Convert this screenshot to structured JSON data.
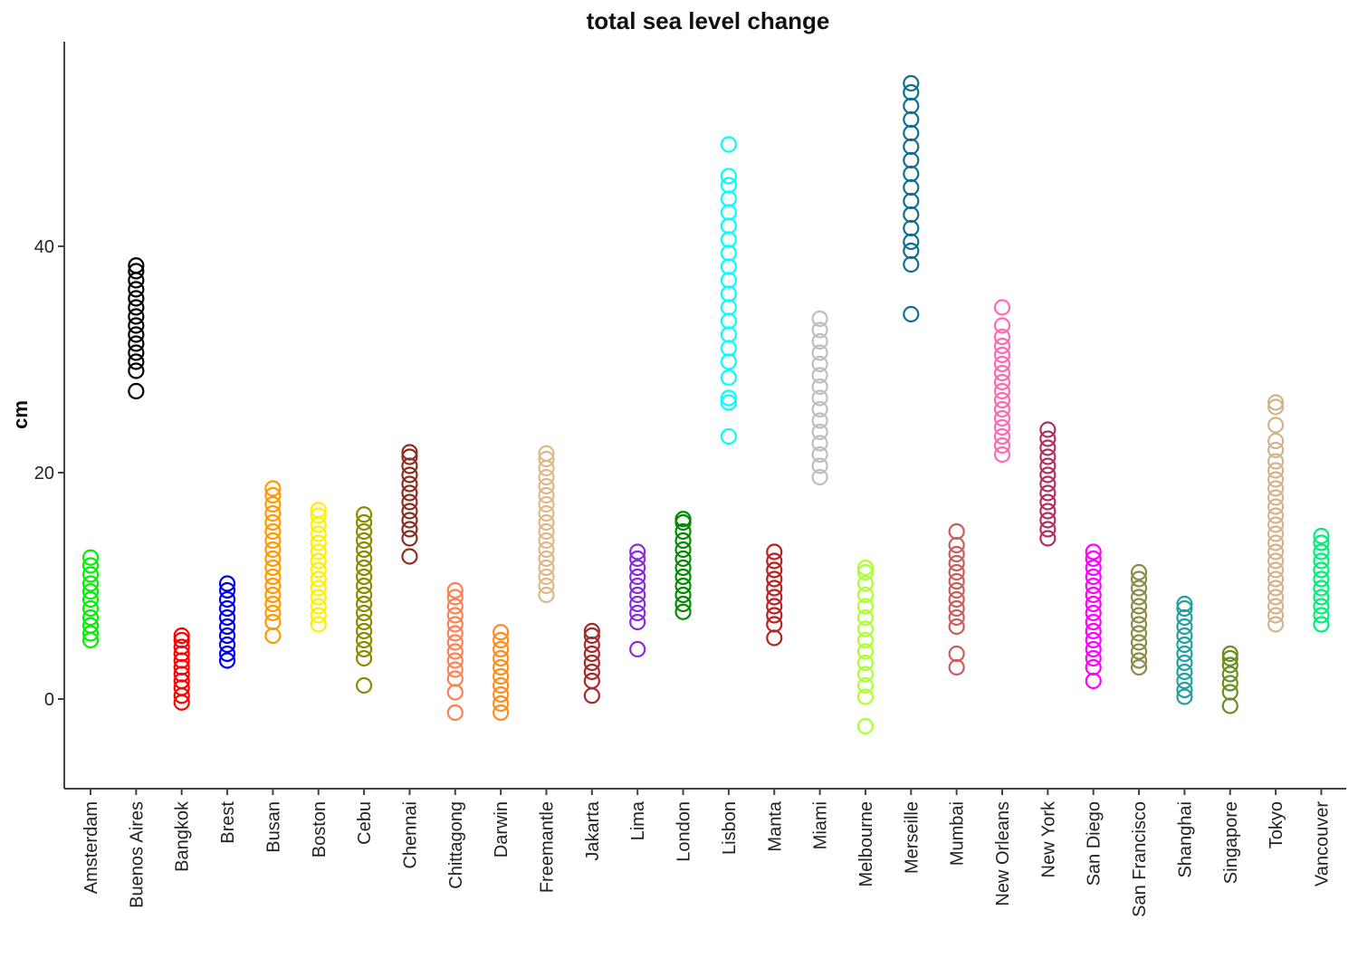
{
  "chart_data": {
    "type": "scatter",
    "title": "total sea level change",
    "xlabel": "",
    "ylabel": "cm",
    "ylim": [
      -8,
      58
    ],
    "yticks": [
      0,
      20,
      40
    ],
    "grid": false,
    "legend": "none",
    "marker": "open-circle",
    "categories": [
      "Amsterdam",
      "Buenos Aires",
      "Bangkok",
      "Brest",
      "Busan",
      "Boston",
      "Cebu",
      "Chennai",
      "Chittagong",
      "Darwin",
      "Freemantle",
      "Jakarta",
      "Lima",
      "London",
      "Lisbon",
      "Manta",
      "Miami",
      "Melbourne",
      "Merseille",
      "Mumbai",
      "New Orleans",
      "New York",
      "San Diego",
      "San Francisco",
      "Shanghai",
      "Singapore",
      "Tokyo",
      "Vancouver"
    ],
    "series": [
      {
        "category": "Amsterdam",
        "color": "#00f000",
        "values": [
          5.2,
          5.8,
          6.5,
          7.2,
          8.0,
          8.8,
          9.5,
          10.2,
          11.0,
          11.8,
          12.5
        ]
      },
      {
        "category": "Buenos Aires",
        "color": "#000000",
        "values": [
          27.2,
          29.0,
          29.8,
          30.6,
          31.4,
          32.2,
          33.0,
          33.8,
          34.6,
          35.4,
          36.2,
          37.0,
          37.8,
          38.3
        ]
      },
      {
        "category": "Bangkok",
        "color": "#ff0000",
        "values": [
          -0.3,
          0.3,
          1.0,
          1.6,
          2.2,
          2.8,
          3.4,
          4.0,
          4.6,
          5.2,
          5.6
        ]
      },
      {
        "category": "Brest",
        "color": "#0000ee",
        "values": [
          3.4,
          4.0,
          4.8,
          5.6,
          6.4,
          7.2,
          8.0,
          8.8,
          9.6,
          10.2
        ]
      },
      {
        "category": "Busan",
        "color": "#ff9900",
        "values": [
          5.6,
          6.8,
          7.6,
          8.4,
          9.2,
          10.0,
          10.8,
          11.6,
          12.4,
          13.2,
          14.0,
          14.8,
          15.6,
          16.4,
          17.2,
          18.0,
          18.6
        ]
      },
      {
        "category": "Boston",
        "color": "#ffee00",
        "values": [
          6.6,
          7.4,
          8.2,
          9.0,
          9.8,
          10.6,
          11.4,
          12.2,
          13.0,
          13.8,
          14.6,
          15.4,
          16.2,
          16.7
        ]
      },
      {
        "category": "Cebu",
        "color": "#8b8b00",
        "values": [
          1.2,
          3.6,
          4.4,
          5.2,
          6.0,
          6.8,
          7.6,
          8.4,
          9.2,
          10.0,
          10.8,
          11.6,
          12.4,
          13.2,
          14.0,
          14.8,
          15.6,
          16.3
        ]
      },
      {
        "category": "Chennai",
        "color": "#8b2e1f",
        "values": [
          12.6,
          14.2,
          15.0,
          15.8,
          16.6,
          17.4,
          18.2,
          19.0,
          19.8,
          20.6,
          21.4,
          21.8
        ]
      },
      {
        "category": "Chittagong",
        "color": "#ff7f50",
        "values": [
          -1.2,
          0.6,
          1.8,
          2.6,
          3.4,
          4.2,
          5.0,
          5.8,
          6.6,
          7.4,
          8.2,
          9.0,
          9.6
        ]
      },
      {
        "category": "Darwin",
        "color": "#ff8c1a",
        "values": [
          -1.2,
          -0.4,
          0.4,
          1.2,
          2.0,
          2.8,
          3.6,
          4.4,
          5.2,
          5.9
        ]
      },
      {
        "category": "Freemantle",
        "color": "#deb887",
        "values": [
          9.2,
          10.0,
          10.8,
          11.6,
          12.4,
          13.2,
          14.0,
          14.8,
          15.6,
          16.4,
          17.2,
          18.0,
          18.8,
          19.6,
          20.4,
          21.2,
          21.7
        ]
      },
      {
        "category": "Jakarta",
        "color": "#a52a2a",
        "values": [
          0.3,
          1.6,
          2.4,
          3.2,
          4.0,
          4.8,
          5.6,
          6.0
        ]
      },
      {
        "category": "Lima",
        "color": "#8a2be2",
        "values": [
          4.4,
          6.8,
          7.6,
          8.4,
          9.2,
          10.0,
          10.8,
          11.6,
          12.4,
          13.0
        ]
      },
      {
        "category": "London",
        "color": "#008b00",
        "values": [
          7.7,
          8.4,
          9.2,
          10.0,
          10.8,
          11.6,
          12.4,
          13.2,
          14.0,
          14.8,
          15.6,
          15.9
        ]
      },
      {
        "category": "Lisbon",
        "color": "#00ffff",
        "values": [
          23.2,
          26.2,
          26.6,
          28.4,
          29.8,
          31.0,
          32.2,
          33.4,
          34.6,
          35.8,
          37.0,
          38.2,
          39.4,
          40.6,
          41.8,
          43.0,
          44.2,
          45.4,
          46.2,
          49.0
        ]
      },
      {
        "category": "Manta",
        "color": "#b22222",
        "values": [
          5.4,
          6.6,
          7.4,
          8.2,
          9.0,
          9.8,
          10.6,
          11.4,
          12.2,
          13.0
        ]
      },
      {
        "category": "Miami",
        "color": "#bebebe",
        "values": [
          19.6,
          20.6,
          21.6,
          22.6,
          23.6,
          24.6,
          25.6,
          26.6,
          27.6,
          28.6,
          29.6,
          30.6,
          31.6,
          32.6,
          33.6
        ]
      },
      {
        "category": "Melbourne",
        "color": "#adff2f",
        "values": [
          -2.4,
          0.2,
          1.2,
          2.2,
          3.2,
          4.2,
          5.2,
          6.2,
          7.2,
          8.2,
          9.2,
          10.2,
          11.2,
          11.6
        ]
      },
      {
        "category": "Merseille",
        "color": "#0e6e96",
        "values": [
          34.0,
          38.4,
          39.6,
          40.4,
          41.6,
          42.8,
          44.0,
          45.2,
          46.4,
          47.6,
          48.8,
          50.0,
          51.2,
          52.4,
          53.6,
          54.4
        ]
      },
      {
        "category": "Mumbai",
        "color": "#cd5c5c",
        "values": [
          2.8,
          4.0,
          6.4,
          7.2,
          8.0,
          8.8,
          9.6,
          10.4,
          11.2,
          12.0,
          12.8,
          13.6,
          14.8
        ]
      },
      {
        "category": "New Orleans",
        "color": "#ff69b4",
        "values": [
          21.6,
          22.4,
          23.2,
          24.0,
          24.8,
          25.6,
          26.4,
          27.2,
          28.0,
          28.8,
          29.6,
          30.4,
          31.2,
          32.0,
          33.0,
          34.6
        ]
      },
      {
        "category": "New York",
        "color": "#b03060",
        "values": [
          14.2,
          15.0,
          15.8,
          16.6,
          17.4,
          18.2,
          19.0,
          19.8,
          20.6,
          21.4,
          22.2,
          23.0,
          23.8
        ]
      },
      {
        "category": "San Diego",
        "color": "#ff00ff",
        "values": [
          1.6,
          2.8,
          3.6,
          4.4,
          5.2,
          6.0,
          6.8,
          7.6,
          8.4,
          9.2,
          10.0,
          10.8,
          11.6,
          12.4,
          13.0
        ]
      },
      {
        "category": "San Francisco",
        "color": "#8b8b4a",
        "values": [
          2.8,
          3.4,
          4.2,
          5.0,
          5.8,
          6.6,
          7.4,
          8.2,
          9.0,
          9.8,
          10.6,
          11.2
        ]
      },
      {
        "category": "Shanghai",
        "color": "#20a0a0",
        "values": [
          0.2,
          0.8,
          1.6,
          2.4,
          3.2,
          4.0,
          4.8,
          5.6,
          6.4,
          7.2,
          8.0,
          8.4
        ]
      },
      {
        "category": "Singapore",
        "color": "#6b8e23",
        "values": [
          -0.6,
          0.6,
          1.4,
          2.2,
          3.0,
          3.6,
          4.0
        ]
      },
      {
        "category": "Tokyo",
        "color": "#d2b48c",
        "values": [
          6.6,
          7.4,
          8.2,
          9.0,
          9.8,
          10.6,
          11.4,
          12.2,
          13.0,
          13.8,
          14.6,
          15.4,
          16.2,
          17.0,
          17.8,
          18.6,
          19.4,
          20.2,
          21.0,
          22.0,
          22.8,
          24.2,
          25.8,
          26.2
        ]
      },
      {
        "category": "Vancouver",
        "color": "#00ee76",
        "values": [
          6.6,
          7.4,
          8.2,
          9.0,
          9.8,
          10.6,
          11.4,
          12.2,
          13.0,
          13.8,
          14.4
        ]
      }
    ]
  }
}
